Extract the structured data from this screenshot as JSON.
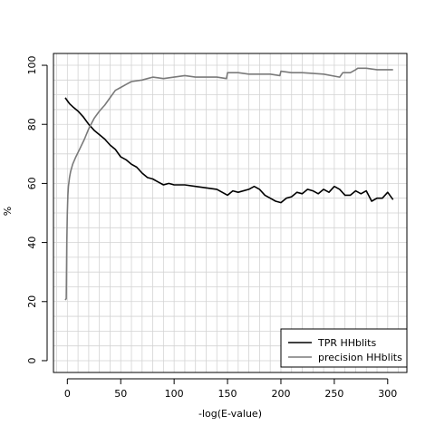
{
  "chart_data": {
    "type": "line",
    "xlabel": "-log(E-value)",
    "ylabel": "%",
    "xlim": [
      -13,
      318
    ],
    "ylim": [
      -4,
      104
    ],
    "xticks": [
      0,
      50,
      100,
      150,
      200,
      250,
      300
    ],
    "xtick_labels": [
      "0",
      "50",
      "100",
      "150",
      "200",
      "250",
      "300"
    ],
    "yticks": [
      0,
      20,
      40,
      60,
      80,
      100
    ],
    "ytick_labels": [
      "0",
      "20",
      "40",
      "60",
      "80",
      "100"
    ],
    "grid": true,
    "legend_position": "bottom-right",
    "legend_labels": [
      "TPR HHblits",
      "precision HHblits"
    ],
    "series": [
      {
        "name": "TPR HHblits",
        "color": "#000000",
        "x": [
          -2,
          0,
          2,
          5,
          10,
          15,
          20,
          25,
          30,
          35,
          40,
          45,
          50,
          55,
          60,
          65,
          70,
          75,
          80,
          85,
          90,
          95,
          100,
          110,
          120,
          130,
          140,
          145,
          150,
          155,
          160,
          170,
          175,
          180,
          185,
          190,
          195,
          200,
          205,
          210,
          215,
          220,
          225,
          230,
          235,
          240,
          245,
          250,
          255,
          260,
          265,
          270,
          275,
          280,
          285,
          290,
          295,
          300,
          305
        ],
        "y": [
          89,
          88,
          87,
          86,
          84.5,
          82.5,
          80,
          78,
          76.5,
          75,
          73,
          71.5,
          69,
          68,
          66.5,
          65.5,
          63.5,
          62,
          61.5,
          60.5,
          59.5,
          60,
          59.5,
          59.5,
          59,
          58.5,
          58,
          57,
          56,
          57.5,
          57,
          58,
          59,
          58,
          56,
          55,
          54,
          53.5,
          55,
          55.5,
          57,
          56.5,
          58,
          57.5,
          56.5,
          58,
          57,
          59,
          58,
          56,
          56,
          57.5,
          56.5,
          57.5,
          54,
          55,
          55,
          57,
          54.5
        ]
      },
      {
        "name": "precision HHblits",
        "color": "#7a7a7a",
        "x": [
          -2,
          -1,
          -0.5,
          0,
          0.5,
          1,
          2,
          3,
          5,
          8,
          12,
          16,
          20,
          25,
          30,
          35,
          40,
          45,
          50,
          55,
          60,
          70,
          75,
          80,
          90,
          100,
          110,
          120,
          130,
          140,
          149,
          150,
          160,
          170,
          180,
          190,
          199,
          200,
          210,
          220,
          240,
          255,
          258,
          265,
          270,
          272,
          280,
          290,
          300,
          305
        ],
        "y": [
          20.5,
          21,
          40,
          50,
          56,
          59,
          62,
          64,
          66.5,
          69,
          72,
          75,
          78.5,
          82,
          84.5,
          86.5,
          89,
          91.5,
          92.5,
          93.5,
          94.5,
          95,
          95.5,
          96,
          95.5,
          96,
          96.5,
          96,
          96,
          96,
          95.5,
          97.5,
          97.5,
          97,
          97,
          97,
          96.5,
          98,
          97.5,
          97.5,
          97,
          96,
          97.5,
          97.5,
          98.5,
          99,
          99,
          98.5,
          98.5,
          98.5
        ]
      }
    ]
  }
}
